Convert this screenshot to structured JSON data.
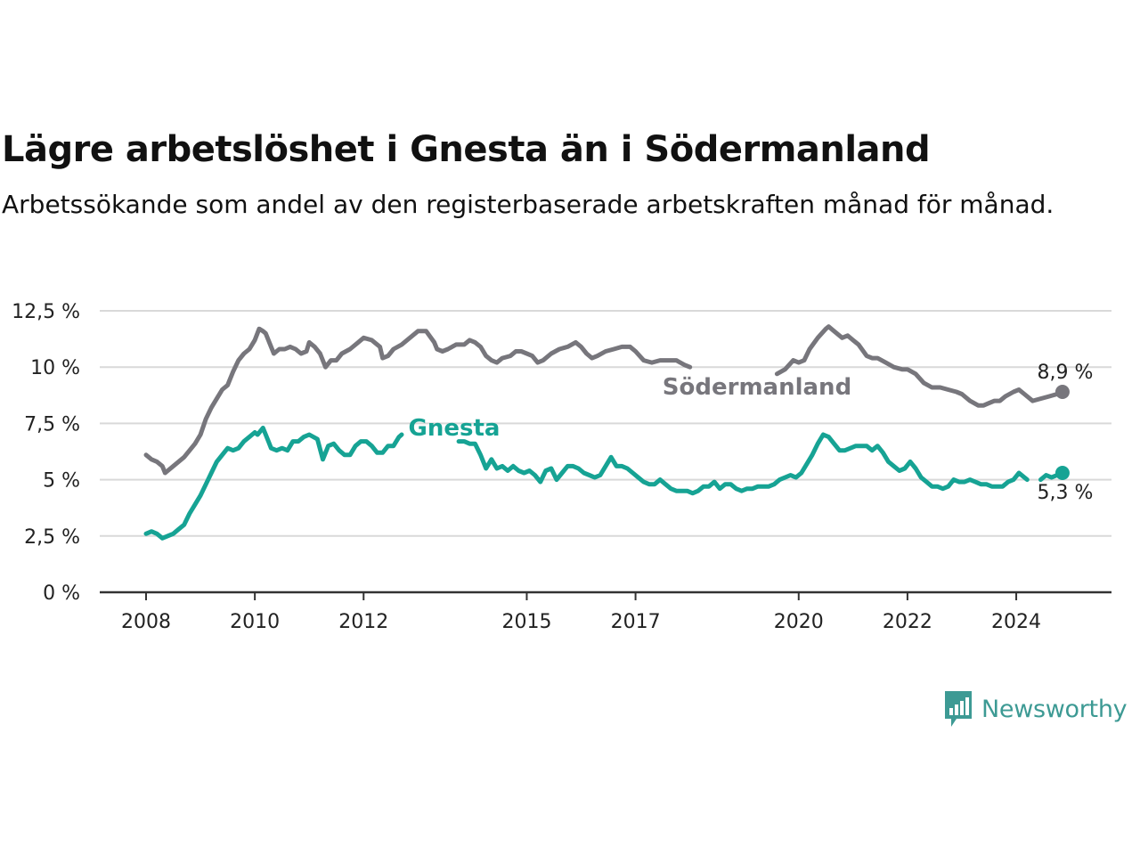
{
  "title": "Lägre arbetslöshet i Gnesta än i Södermanland",
  "subtitle": "Arbetssökande som andel av den registerbaserade arbetskraften månad för månad.",
  "brand": "Newsworthy",
  "colors": {
    "gnesta": "#16a394",
    "sodermanland": "#77767c",
    "grid": "#d9d9d9",
    "axis": "#333333",
    "brand": "#3d9a94"
  },
  "chart_data": {
    "type": "line",
    "y_ticks": [
      0,
      2.5,
      5,
      7.5,
      10,
      12.5
    ],
    "y_tick_labels": [
      "0 %",
      "2,5 %",
      "5 %",
      "7,5 %",
      "10 %",
      "12,5 %"
    ],
    "ylim": [
      0,
      12.5
    ],
    "x_ticks": [
      2008,
      2010,
      2012,
      2015,
      2017,
      2020,
      2022,
      2024
    ],
    "x_tick_labels": [
      "2008",
      "2010",
      "2012",
      "2015",
      "2017",
      "2020",
      "2022",
      "2024"
    ],
    "xlim": [
      2008,
      2024.9
    ],
    "grid": true,
    "series": [
      {
        "name": "Södermanland",
        "color": "#77767c",
        "end_label": "8,9 %",
        "points": [
          [
            2008.0,
            6.1
          ],
          [
            2008.1,
            5.9
          ],
          [
            2008.2,
            5.8
          ],
          [
            2008.3,
            5.6
          ],
          [
            2008.35,
            5.3
          ],
          [
            2008.5,
            5.6
          ],
          [
            2008.7,
            6.0
          ],
          [
            2008.9,
            6.6
          ],
          [
            2009.0,
            7.0
          ],
          [
            2009.1,
            7.7
          ],
          [
            2009.2,
            8.2
          ],
          [
            2009.3,
            8.6
          ],
          [
            2009.4,
            9.0
          ],
          [
            2009.5,
            9.2
          ],
          [
            2009.6,
            9.8
          ],
          [
            2009.7,
            10.3
          ],
          [
            2009.8,
            10.6
          ],
          [
            2009.9,
            10.8
          ],
          [
            2010.0,
            11.2
          ],
          [
            2010.08,
            11.7
          ],
          [
            2010.15,
            11.6
          ],
          [
            2010.2,
            11.5
          ],
          [
            2010.3,
            10.9
          ],
          [
            2010.35,
            10.6
          ],
          [
            2010.45,
            10.8
          ],
          [
            2010.55,
            10.8
          ],
          [
            2010.65,
            10.9
          ],
          [
            2010.75,
            10.8
          ],
          [
            2010.85,
            10.6
          ],
          [
            2010.95,
            10.7
          ],
          [
            2011.0,
            11.1
          ],
          [
            2011.1,
            10.9
          ],
          [
            2011.2,
            10.6
          ],
          [
            2011.3,
            10.0
          ],
          [
            2011.4,
            10.3
          ],
          [
            2011.5,
            10.3
          ],
          [
            2011.6,
            10.6
          ],
          [
            2011.75,
            10.8
          ],
          [
            2011.9,
            11.1
          ],
          [
            2012.0,
            11.3
          ],
          [
            2012.15,
            11.2
          ],
          [
            2012.3,
            10.9
          ],
          [
            2012.35,
            10.4
          ],
          [
            2012.45,
            10.5
          ],
          [
            2012.55,
            10.8
          ],
          [
            2012.7,
            11.0
          ],
          [
            2012.85,
            11.3
          ],
          [
            2013.0,
            11.6
          ],
          [
            2013.15,
            11.6
          ],
          [
            2013.3,
            11.1
          ],
          [
            2013.35,
            10.8
          ],
          [
            2013.45,
            10.7
          ],
          [
            2013.55,
            10.8
          ],
          [
            2013.7,
            11.0
          ],
          [
            2013.85,
            11.0
          ],
          [
            2013.95,
            11.2
          ],
          [
            2014.05,
            11.1
          ],
          [
            2014.15,
            10.9
          ],
          [
            2014.25,
            10.5
          ],
          [
            2014.35,
            10.3
          ],
          [
            2014.45,
            10.2
          ],
          [
            2014.55,
            10.4
          ],
          [
            2014.7,
            10.5
          ],
          [
            2014.8,
            10.7
          ],
          [
            2014.9,
            10.7
          ],
          [
            2015.0,
            10.6
          ],
          [
            2015.1,
            10.5
          ],
          [
            2015.2,
            10.2
          ],
          [
            2015.3,
            10.3
          ],
          [
            2015.45,
            10.6
          ],
          [
            2015.6,
            10.8
          ],
          [
            2015.75,
            10.9
          ],
          [
            2015.9,
            11.1
          ],
          [
            2016.0,
            10.9
          ],
          [
            2016.1,
            10.6
          ],
          [
            2016.2,
            10.4
          ],
          [
            2016.3,
            10.5
          ],
          [
            2016.45,
            10.7
          ],
          [
            2016.6,
            10.8
          ],
          [
            2016.75,
            10.9
          ],
          [
            2016.9,
            10.9
          ],
          [
            2017.0,
            10.7
          ],
          [
            2017.15,
            10.3
          ],
          [
            2017.3,
            10.2
          ],
          [
            2017.45,
            10.3
          ],
          [
            2017.6,
            10.3
          ],
          [
            2017.75,
            10.3
          ],
          [
            2017.9,
            10.1
          ],
          [
            2018.0,
            10.0
          ],
          null,
          [
            2019.6,
            9.7
          ],
          [
            2019.75,
            9.9
          ],
          [
            2019.9,
            10.3
          ],
          [
            2020.0,
            10.2
          ],
          [
            2020.1,
            10.3
          ],
          [
            2020.2,
            10.8
          ],
          [
            2020.35,
            11.3
          ],
          [
            2020.5,
            11.7
          ],
          [
            2020.55,
            11.8
          ],
          [
            2020.65,
            11.6
          ],
          [
            2020.8,
            11.3
          ],
          [
            2020.9,
            11.4
          ],
          [
            2021.0,
            11.2
          ],
          [
            2021.1,
            11.0
          ],
          [
            2021.25,
            10.5
          ],
          [
            2021.35,
            10.4
          ],
          [
            2021.45,
            10.4
          ],
          [
            2021.6,
            10.2
          ],
          [
            2021.75,
            10.0
          ],
          [
            2021.9,
            9.9
          ],
          [
            2022.0,
            9.9
          ],
          [
            2022.15,
            9.7
          ],
          [
            2022.3,
            9.3
          ],
          [
            2022.45,
            9.1
          ],
          [
            2022.6,
            9.1
          ],
          [
            2022.75,
            9.0
          ],
          [
            2022.9,
            8.9
          ],
          [
            2023.0,
            8.8
          ],
          [
            2023.15,
            8.5
          ],
          [
            2023.3,
            8.3
          ],
          [
            2023.4,
            8.3
          ],
          [
            2023.5,
            8.4
          ],
          [
            2023.6,
            8.5
          ],
          [
            2023.7,
            8.5
          ],
          [
            2023.8,
            8.7
          ],
          [
            2023.95,
            8.9
          ],
          [
            2024.05,
            9.0
          ],
          [
            2024.15,
            8.8
          ],
          [
            2024.3,
            8.5
          ],
          [
            2024.45,
            8.6
          ],
          [
            2024.6,
            8.7
          ],
          [
            2024.75,
            8.8
          ],
          [
            2024.85,
            8.9
          ]
        ]
      },
      {
        "name": "Gnesta",
        "color": "#16a394",
        "end_label": "5,3 %",
        "points": [
          [
            2008.0,
            2.6
          ],
          [
            2008.1,
            2.7
          ],
          [
            2008.2,
            2.6
          ],
          [
            2008.3,
            2.4
          ],
          [
            2008.4,
            2.5
          ],
          [
            2008.5,
            2.6
          ],
          [
            2008.6,
            2.8
          ],
          [
            2008.7,
            3.0
          ],
          [
            2008.8,
            3.5
          ],
          [
            2008.9,
            3.9
          ],
          [
            2009.0,
            4.3
          ],
          [
            2009.1,
            4.8
          ],
          [
            2009.2,
            5.3
          ],
          [
            2009.3,
            5.8
          ],
          [
            2009.4,
            6.1
          ],
          [
            2009.5,
            6.4
          ],
          [
            2009.6,
            6.3
          ],
          [
            2009.7,
            6.4
          ],
          [
            2009.8,
            6.7
          ],
          [
            2009.9,
            6.9
          ],
          [
            2010.0,
            7.1
          ],
          [
            2010.05,
            7.0
          ],
          [
            2010.15,
            7.3
          ],
          [
            2010.25,
            6.7
          ],
          [
            2010.3,
            6.4
          ],
          [
            2010.4,
            6.3
          ],
          [
            2010.5,
            6.4
          ],
          [
            2010.6,
            6.3
          ],
          [
            2010.7,
            6.7
          ],
          [
            2010.8,
            6.7
          ],
          [
            2010.9,
            6.9
          ],
          [
            2011.0,
            7.0
          ],
          [
            2011.15,
            6.8
          ],
          [
            2011.25,
            5.9
          ],
          [
            2011.35,
            6.5
          ],
          [
            2011.45,
            6.6
          ],
          [
            2011.55,
            6.3
          ],
          [
            2011.65,
            6.1
          ],
          [
            2011.75,
            6.1
          ],
          [
            2011.85,
            6.5
          ],
          [
            2011.95,
            6.7
          ],
          [
            2012.05,
            6.7
          ],
          [
            2012.15,
            6.5
          ],
          [
            2012.25,
            6.2
          ],
          [
            2012.35,
            6.2
          ],
          [
            2012.45,
            6.5
          ],
          [
            2012.55,
            6.5
          ],
          [
            2012.65,
            6.9
          ],
          [
            2012.7,
            7.0
          ],
          null,
          [
            2013.75,
            6.7
          ],
          [
            2013.85,
            6.7
          ],
          [
            2013.95,
            6.6
          ],
          [
            2014.05,
            6.6
          ],
          [
            2014.15,
            6.1
          ],
          [
            2014.25,
            5.5
          ],
          [
            2014.35,
            5.9
          ],
          [
            2014.45,
            5.5
          ],
          [
            2014.55,
            5.6
          ],
          [
            2014.65,
            5.4
          ],
          [
            2014.75,
            5.6
          ],
          [
            2014.85,
            5.4
          ],
          [
            2014.95,
            5.3
          ],
          [
            2015.05,
            5.4
          ],
          [
            2015.15,
            5.2
          ],
          [
            2015.25,
            4.9
          ],
          [
            2015.35,
            5.4
          ],
          [
            2015.45,
            5.5
          ],
          [
            2015.55,
            5.0
          ],
          [
            2015.65,
            5.3
          ],
          [
            2015.75,
            5.6
          ],
          [
            2015.85,
            5.6
          ],
          [
            2015.95,
            5.5
          ],
          [
            2016.05,
            5.3
          ],
          [
            2016.15,
            5.2
          ],
          [
            2016.25,
            5.1
          ],
          [
            2016.35,
            5.2
          ],
          [
            2016.45,
            5.6
          ],
          [
            2016.55,
            6.0
          ],
          [
            2016.65,
            5.6
          ],
          [
            2016.75,
            5.6
          ],
          [
            2016.85,
            5.5
          ],
          [
            2016.95,
            5.3
          ],
          [
            2017.05,
            5.1
          ],
          [
            2017.15,
            4.9
          ],
          [
            2017.25,
            4.8
          ],
          [
            2017.35,
            4.8
          ],
          [
            2017.45,
            5.0
          ],
          [
            2017.55,
            4.8
          ],
          [
            2017.65,
            4.6
          ],
          [
            2017.75,
            4.5
          ],
          [
            2017.85,
            4.5
          ],
          [
            2017.95,
            4.5
          ],
          [
            2018.05,
            4.4
          ],
          [
            2018.15,
            4.5
          ],
          [
            2018.25,
            4.7
          ],
          [
            2018.35,
            4.7
          ],
          [
            2018.45,
            4.9
          ],
          [
            2018.55,
            4.6
          ],
          [
            2018.65,
            4.8
          ],
          [
            2018.75,
            4.8
          ],
          [
            2018.85,
            4.6
          ],
          [
            2018.95,
            4.5
          ],
          [
            2019.05,
            4.6
          ],
          [
            2019.15,
            4.6
          ],
          [
            2019.25,
            4.7
          ],
          [
            2019.35,
            4.7
          ],
          [
            2019.45,
            4.7
          ],
          [
            2019.55,
            4.8
          ],
          [
            2019.65,
            5.0
          ],
          [
            2019.75,
            5.1
          ],
          [
            2019.85,
            5.2
          ],
          [
            2019.95,
            5.1
          ],
          [
            2020.05,
            5.3
          ],
          [
            2020.15,
            5.7
          ],
          [
            2020.25,
            6.1
          ],
          [
            2020.35,
            6.6
          ],
          [
            2020.45,
            7.0
          ],
          [
            2020.55,
            6.9
          ],
          [
            2020.65,
            6.6
          ],
          [
            2020.75,
            6.3
          ],
          [
            2020.85,
            6.3
          ],
          [
            2020.95,
            6.4
          ],
          [
            2021.05,
            6.5
          ],
          [
            2021.15,
            6.5
          ],
          [
            2021.25,
            6.5
          ],
          [
            2021.35,
            6.3
          ],
          [
            2021.45,
            6.5
          ],
          [
            2021.55,
            6.2
          ],
          [
            2021.65,
            5.8
          ],
          [
            2021.75,
            5.6
          ],
          [
            2021.85,
            5.4
          ],
          [
            2021.95,
            5.5
          ],
          [
            2022.05,
            5.8
          ],
          [
            2022.15,
            5.5
          ],
          [
            2022.25,
            5.1
          ],
          [
            2022.35,
            4.9
          ],
          [
            2022.45,
            4.7
          ],
          [
            2022.55,
            4.7
          ],
          [
            2022.65,
            4.6
          ],
          [
            2022.75,
            4.7
          ],
          [
            2022.85,
            5.0
          ],
          [
            2022.95,
            4.9
          ],
          [
            2023.05,
            4.9
          ],
          [
            2023.15,
            5.0
          ],
          [
            2023.25,
            4.9
          ],
          [
            2023.35,
            4.8
          ],
          [
            2023.45,
            4.8
          ],
          [
            2023.55,
            4.7
          ],
          [
            2023.65,
            4.7
          ],
          [
            2023.75,
            4.7
          ],
          [
            2023.85,
            4.9
          ],
          [
            2023.95,
            5.0
          ],
          [
            2024.05,
            5.3
          ],
          [
            2024.15,
            5.1
          ],
          [
            2024.2,
            5.0
          ],
          null,
          [
            2024.45,
            5.0
          ],
          [
            2024.55,
            5.2
          ],
          [
            2024.65,
            5.1
          ],
          [
            2024.75,
            5.2
          ],
          [
            2024.85,
            5.3
          ]
        ]
      }
    ]
  }
}
